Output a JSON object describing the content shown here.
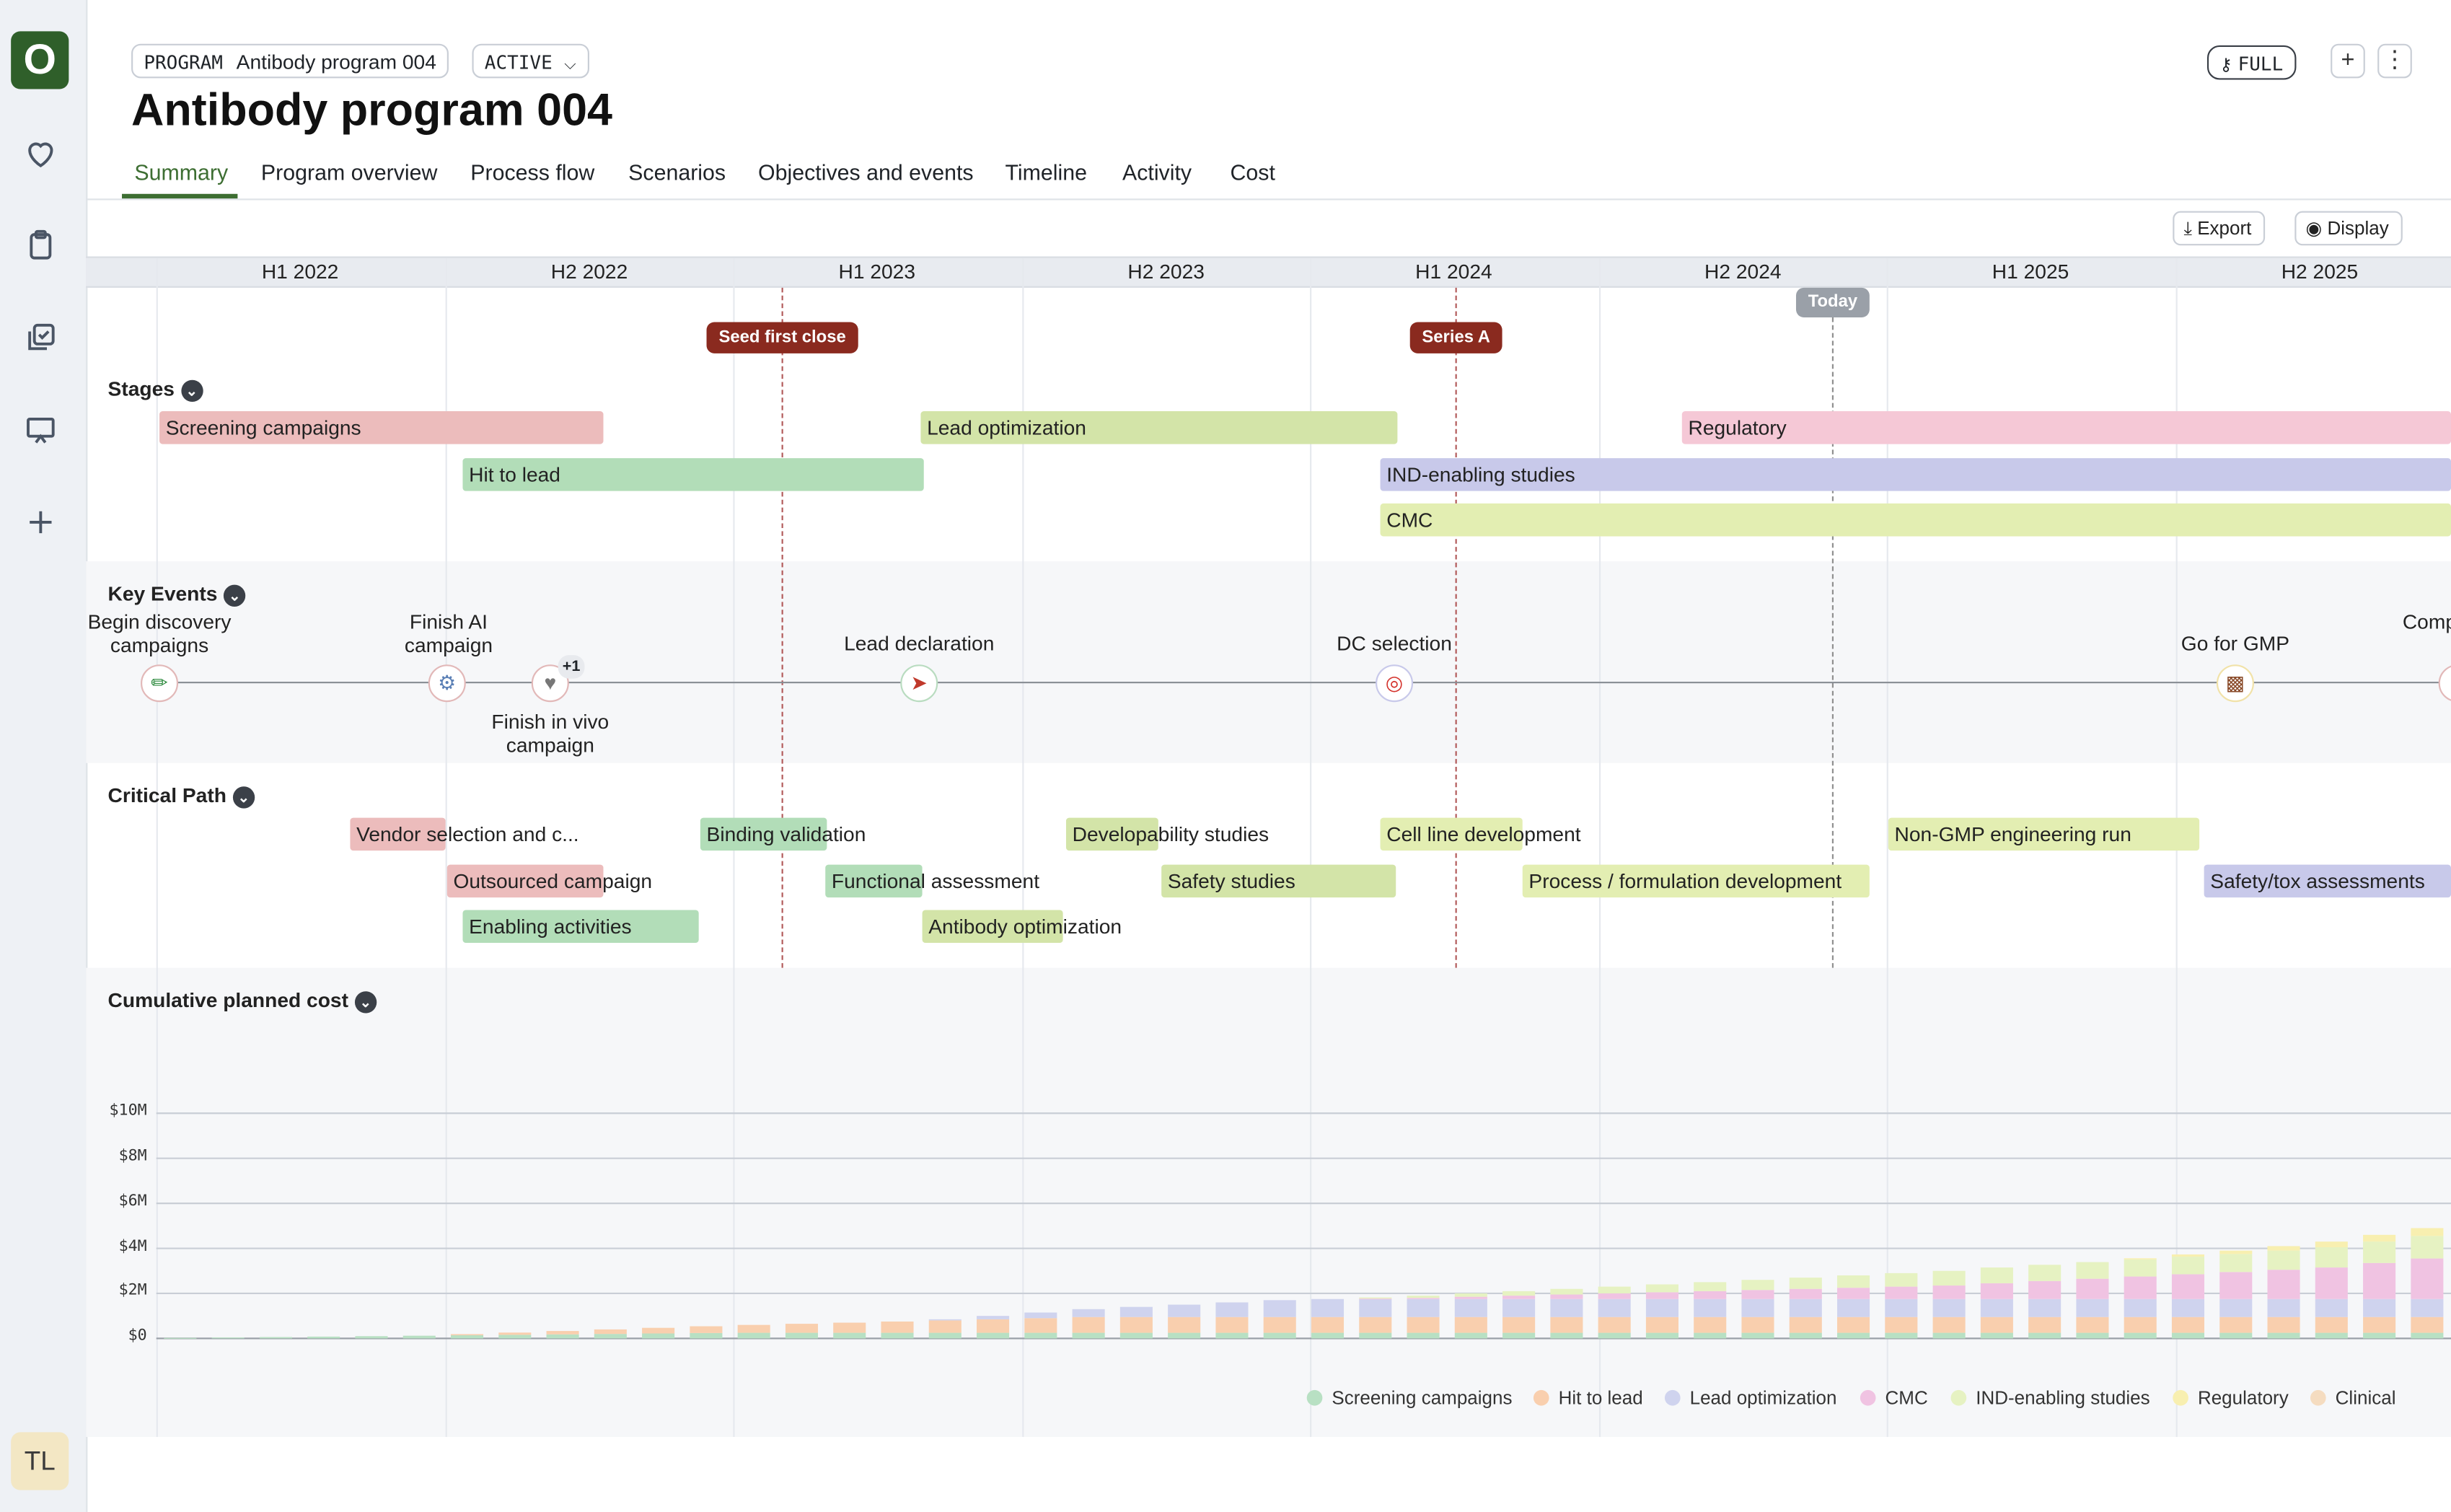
{
  "sidebar": {
    "logo": "O",
    "items": [
      {
        "name": "favorites",
        "icon": "heart-icon"
      },
      {
        "name": "tasks",
        "icon": "clipboard-icon"
      },
      {
        "name": "reviews",
        "icon": "checklist-icon"
      },
      {
        "name": "presentations",
        "icon": "presentation-icon"
      },
      {
        "name": "add",
        "icon": "plus-icon"
      }
    ],
    "avatar": "TL"
  },
  "header": {
    "type_label": "PROGRAM",
    "program_name": "Antibody program 004",
    "status": "ACTIVE",
    "title": "Antibody program 004",
    "access_label": "FULL"
  },
  "tabs": [
    "Summary",
    "Program overview",
    "Process flow",
    "Scenarios",
    "Objectives and events",
    "Timeline",
    "Activity",
    "Cost"
  ],
  "toolbar": {
    "export_label": "Export",
    "display_label": "Display"
  },
  "timeline": {
    "periods": [
      "H1 2022",
      "H2 2022",
      "H1 2023",
      "H2 2023",
      "H1 2024",
      "H2 2024",
      "H1 2025",
      "H2 2025"
    ],
    "markers": {
      "seed": "Seed first close",
      "series_a": "Series A",
      "today": "Today"
    }
  },
  "sections": {
    "stages": "Stages",
    "key_events": "Key Events",
    "critical_path": "Critical Path",
    "cost": "Cumulative planned cost"
  },
  "stages": [
    {
      "label": "Screening campaigns",
      "color": "#ecbcbc"
    },
    {
      "label": "Lead optimization",
      "color": "#d3e4a8"
    },
    {
      "label": "Regulatory",
      "color": "#f5c8d6"
    },
    {
      "label": "Hit to lead",
      "color": "#b2ddb8"
    },
    {
      "label": "IND-enabling studies",
      "color": "#c8c9ea"
    },
    {
      "label": "CMC",
      "color": "#e3eeb2"
    }
  ],
  "key_events": [
    {
      "label": "Begin discovery campaigns",
      "icon": "pipette-icon"
    },
    {
      "label": "Finish AI campaign",
      "icon": "robot-icon"
    },
    {
      "label": "Finish in vivo campaign",
      "icon": "rabbit-icon",
      "badge": "+1"
    },
    {
      "label": "Lead declaration",
      "icon": "rocket-icon"
    },
    {
      "label": "DC selection",
      "icon": "target-icon"
    },
    {
      "label": "Go for GMP",
      "icon": "factory-icon"
    },
    {
      "label": "Comp",
      "icon": "flag-icon"
    }
  ],
  "critical_path": [
    {
      "label": "Vendor selection and c..."
    },
    {
      "label": "Binding validation"
    },
    {
      "label": "Developability studies"
    },
    {
      "label": "Cell line development"
    },
    {
      "label": "Non-GMP engineering run"
    },
    {
      "label": "Outsourced campaign"
    },
    {
      "label": "Functional assessment"
    },
    {
      "label": "Safety studies"
    },
    {
      "label": "Process / formulation development"
    },
    {
      "label": "Safety/tox assessments"
    },
    {
      "label": "Enabling activities"
    },
    {
      "label": "Antibody optimization"
    }
  ],
  "chart_data": {
    "type": "bar",
    "stacked": true,
    "title": "Cumulative planned cost",
    "ylabel": "",
    "xlabel": "",
    "ylim": [
      0,
      10
    ],
    "y_ticks": [
      "$0",
      "$2M",
      "$4M",
      "$6M",
      "$8M",
      "$10M"
    ],
    "legend_position": "bottom-right",
    "series": [
      {
        "name": "Screening campaigns",
        "color": "#b8e0c3",
        "values": [
          0.02,
          0.04,
          0.06,
          0.08,
          0.1,
          0.12,
          0.14,
          0.16,
          0.18,
          0.2,
          0.22,
          0.24,
          0.25,
          0.25,
          0.25,
          0.25,
          0.25,
          0.25,
          0.25,
          0.25,
          0.25,
          0.25,
          0.25,
          0.25,
          0.25,
          0.25,
          0.25,
          0.25,
          0.25,
          0.25,
          0.25,
          0.25,
          0.25,
          0.25,
          0.25,
          0.25,
          0.25,
          0.25,
          0.25,
          0.25,
          0.25,
          0.25,
          0.25,
          0.25,
          0.25,
          0.25,
          0.25,
          0.25
        ]
      },
      {
        "name": "Hit to lead",
        "color": "#f9cfae",
        "values": [
          0,
          0,
          0,
          0,
          0,
          0,
          0.05,
          0.1,
          0.15,
          0.2,
          0.25,
          0.3,
          0.35,
          0.4,
          0.45,
          0.5,
          0.55,
          0.6,
          0.65,
          0.7,
          0.7,
          0.7,
          0.7,
          0.7,
          0.7,
          0.7,
          0.7,
          0.7,
          0.7,
          0.7,
          0.7,
          0.7,
          0.7,
          0.7,
          0.7,
          0.7,
          0.7,
          0.7,
          0.7,
          0.7,
          0.7,
          0.7,
          0.7,
          0.7,
          0.7,
          0.7,
          0.7,
          0.7
        ]
      },
      {
        "name": "Lead optimization",
        "color": "#cfd3ee",
        "values": [
          0,
          0,
          0,
          0,
          0,
          0,
          0,
          0,
          0,
          0,
          0,
          0,
          0,
          0,
          0,
          0,
          0.05,
          0.15,
          0.25,
          0.35,
          0.45,
          0.55,
          0.65,
          0.75,
          0.8,
          0.8,
          0.8,
          0.8,
          0.8,
          0.8,
          0.8,
          0.8,
          0.8,
          0.8,
          0.8,
          0.8,
          0.8,
          0.8,
          0.8,
          0.8,
          0.8,
          0.8,
          0.8,
          0.8,
          0.8,
          0.8,
          0.8,
          0.8
        ]
      },
      {
        "name": "CMC",
        "color": "#f0c3e2",
        "values": [
          0,
          0,
          0,
          0,
          0,
          0,
          0,
          0,
          0,
          0,
          0,
          0,
          0,
          0,
          0,
          0,
          0,
          0,
          0,
          0,
          0,
          0,
          0,
          0,
          0,
          0.02,
          0.05,
          0.1,
          0.15,
          0.2,
          0.25,
          0.3,
          0.35,
          0.4,
          0.45,
          0.5,
          0.55,
          0.6,
          0.7,
          0.8,
          0.9,
          1.0,
          1.1,
          1.2,
          1.3,
          1.4,
          1.6,
          1.8
        ]
      },
      {
        "name": "IND-enabling studies",
        "color": "#e6f2c2",
        "values": [
          0,
          0,
          0,
          0,
          0,
          0,
          0,
          0,
          0,
          0,
          0,
          0,
          0,
          0,
          0,
          0,
          0,
          0,
          0,
          0,
          0,
          0,
          0,
          0,
          0,
          0.05,
          0.1,
          0.15,
          0.2,
          0.25,
          0.3,
          0.35,
          0.4,
          0.45,
          0.5,
          0.55,
          0.6,
          0.65,
          0.7,
          0.72,
          0.74,
          0.76,
          0.78,
          0.8,
          0.85,
          0.9,
          0.95,
          1.0
        ]
      },
      {
        "name": "Regulatory",
        "color": "#f8efb0",
        "values": [
          0,
          0,
          0,
          0,
          0,
          0,
          0,
          0,
          0,
          0,
          0,
          0,
          0,
          0,
          0,
          0,
          0,
          0,
          0,
          0,
          0,
          0,
          0,
          0,
          0,
          0,
          0,
          0,
          0,
          0,
          0,
          0,
          0,
          0,
          0,
          0,
          0,
          0,
          0,
          0,
          0,
          0.05,
          0.1,
          0.15,
          0.2,
          0.25,
          0.3,
          0.35
        ]
      },
      {
        "name": "Clinical",
        "color": "#f5dcc0",
        "values": [
          0,
          0,
          0,
          0,
          0,
          0,
          0,
          0,
          0,
          0,
          0,
          0,
          0,
          0,
          0,
          0,
          0,
          0,
          0,
          0,
          0,
          0,
          0,
          0,
          0,
          0,
          0,
          0,
          0,
          0,
          0,
          0,
          0,
          0,
          0,
          0,
          0,
          0,
          0,
          0,
          0,
          0,
          0,
          0,
          0,
          0,
          0,
          0
        ]
      }
    ]
  }
}
